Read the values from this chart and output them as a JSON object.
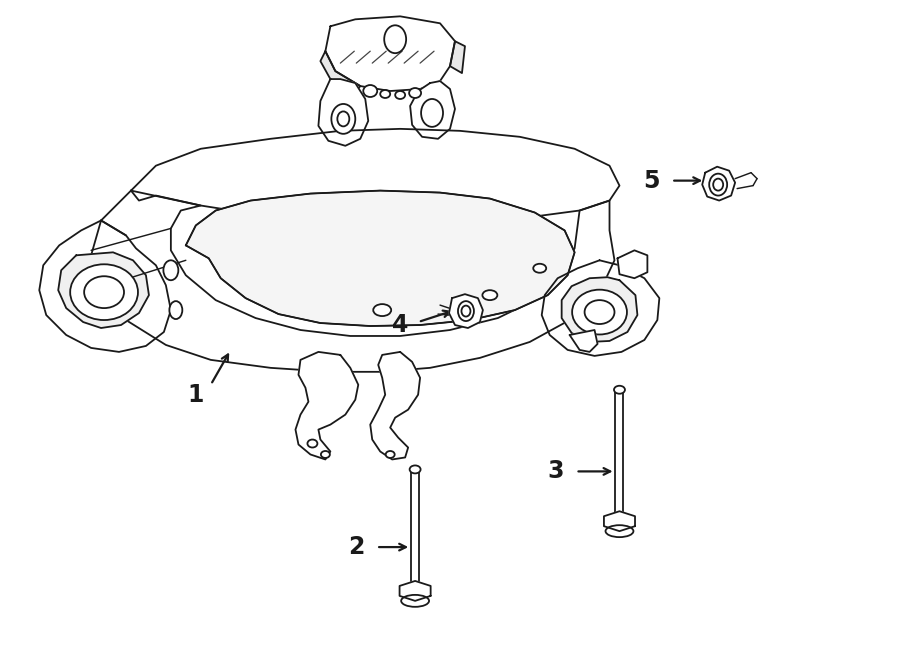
{
  "bg_color": "#ffffff",
  "line_color": "#1a1a1a",
  "figure_width": 9.0,
  "figure_height": 6.61,
  "dpi": 100,
  "lw": 1.3
}
